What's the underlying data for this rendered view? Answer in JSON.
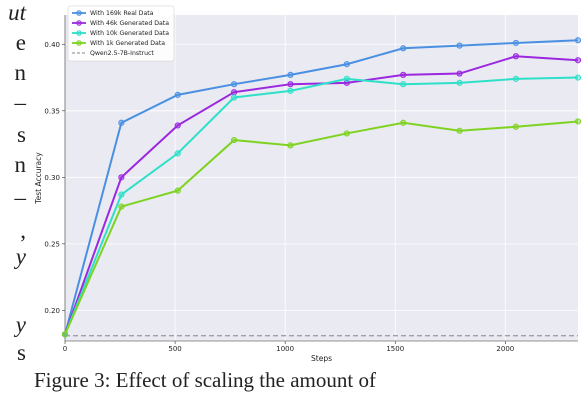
{
  "left_text_fragments": [
    "ut",
    "e",
    "n",
    "–",
    "s",
    "n",
    "–",
    ",",
    "y",
    "y",
    "s"
  ],
  "caption": "Figure 3:   Effect of scaling the amount of",
  "chart_data": {
    "type": "line",
    "title": "",
    "xlabel": "Steps",
    "ylabel": "Test Accuracy",
    "xlim": [
      0,
      2330
    ],
    "ylim": [
      0.177,
      0.422
    ],
    "xticks": [
      0,
      500,
      1000,
      1500,
      2000
    ],
    "xtick_labels": [
      "0",
      "500",
      "1000",
      "1500",
      "2000"
    ],
    "yticks": [
      0.2,
      0.25,
      0.3,
      0.35,
      0.4
    ],
    "ytick_labels": [
      "0.20",
      "0.25",
      "0.30",
      "0.35",
      "0.40"
    ],
    "grid": true,
    "legend_position": "top-left",
    "x": [
      0,
      256,
      512,
      768,
      1024,
      1280,
      1536,
      1792,
      2048,
      2330
    ],
    "series": [
      {
        "name": "With 169k Real Data",
        "color": "#4a90e2",
        "marker": "circle",
        "values": [
          0.182,
          0.341,
          0.362,
          0.37,
          0.377,
          0.385,
          0.397,
          0.399,
          0.401,
          0.403
        ]
      },
      {
        "name": "With 46k Generated Data",
        "color": "#9b27e0",
        "marker": "circle",
        "values": [
          0.182,
          0.3,
          0.339,
          0.364,
          0.37,
          0.371,
          0.377,
          0.378,
          0.391,
          0.388
        ]
      },
      {
        "name": "With 10k Generated Data",
        "color": "#2ee0c8",
        "marker": "circle",
        "values": [
          0.182,
          0.287,
          0.318,
          0.36,
          0.365,
          0.374,
          0.37,
          0.371,
          0.374,
          0.375
        ]
      },
      {
        "name": "With 1k Generated Data",
        "color": "#7ed321",
        "marker": "circle",
        "values": [
          0.182,
          0.278,
          0.29,
          0.328,
          0.324,
          0.333,
          0.341,
          0.335,
          0.338,
          0.342
        ]
      }
    ],
    "baseline": {
      "name": "Qwen2.5-7B-Instruct",
      "value": 0.181,
      "color": "#a0a0a0",
      "style": "dashed"
    }
  }
}
